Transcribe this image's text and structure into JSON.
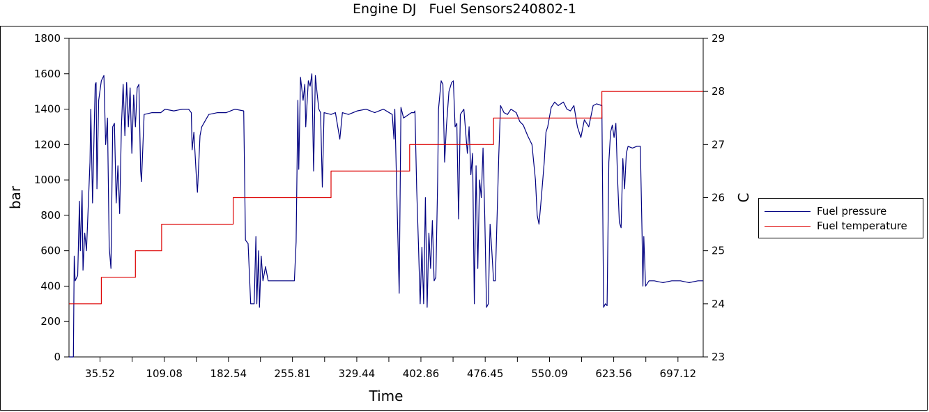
{
  "chart_data": {
    "type": "line",
    "title": "Engine DJ   Fuel Sensors240802-1",
    "xlabel": "Time",
    "ylabel": "bar",
    "y2label": "C",
    "xlim": [
      0,
      726
    ],
    "ylim": [
      0,
      1800
    ],
    "y2lim": [
      23,
      29
    ],
    "x_ticks": [
      35.52,
      109.08,
      182.54,
      255.81,
      329.44,
      402.86,
      476.45,
      550.09,
      623.56,
      697.12
    ],
    "y_ticks": [
      0,
      200,
      400,
      600,
      800,
      1000,
      1200,
      1400,
      1600,
      1800
    ],
    "y2_ticks": [
      23,
      24,
      25,
      26,
      27,
      28,
      29
    ],
    "legend_position": "right",
    "grid": false,
    "series": [
      {
        "name": "Fuel pressure",
        "axis": "left",
        "color": "#000080",
        "points": [
          [
            0,
            0
          ],
          [
            5,
            0
          ],
          [
            6,
            570
          ],
          [
            7,
            430
          ],
          [
            10,
            460
          ],
          [
            12,
            880
          ],
          [
            13,
            600
          ],
          [
            15,
            940
          ],
          [
            16,
            490
          ],
          [
            18,
            700
          ],
          [
            20,
            600
          ],
          [
            24,
            1100
          ],
          [
            25,
            1400
          ],
          [
            27,
            870
          ],
          [
            30,
            1540
          ],
          [
            31,
            1550
          ],
          [
            32,
            950
          ],
          [
            34,
            1450
          ],
          [
            37,
            1560
          ],
          [
            40,
            1590
          ],
          [
            42,
            1200
          ],
          [
            44,
            1350
          ],
          [
            46,
            620
          ],
          [
            48,
            500
          ],
          [
            50,
            1300
          ],
          [
            52,
            1320
          ],
          [
            54,
            870
          ],
          [
            56,
            1080
          ],
          [
            58,
            810
          ],
          [
            60,
            1300
          ],
          [
            62,
            1540
          ],
          [
            64,
            1250
          ],
          [
            66,
            1550
          ],
          [
            68,
            1300
          ],
          [
            70,
            1520
          ],
          [
            72,
            1150
          ],
          [
            74,
            1480
          ],
          [
            76,
            1300
          ],
          [
            78,
            1520
          ],
          [
            80,
            1540
          ],
          [
            82,
            1050
          ],
          [
            83,
            990
          ],
          [
            86,
            1370
          ],
          [
            95,
            1380
          ],
          [
            105,
            1380
          ],
          [
            110,
            1400
          ],
          [
            120,
            1390
          ],
          [
            130,
            1400
          ],
          [
            137,
            1400
          ],
          [
            140,
            1380
          ],
          [
            141,
            1170
          ],
          [
            143,
            1270
          ],
          [
            146,
            1000
          ],
          [
            147,
            930
          ],
          [
            150,
            1250
          ],
          [
            152,
            1300
          ],
          [
            160,
            1370
          ],
          [
            170,
            1380
          ],
          [
            180,
            1380
          ],
          [
            190,
            1400
          ],
          [
            200,
            1390
          ],
          [
            202,
            660
          ],
          [
            205,
            640
          ],
          [
            208,
            300
          ],
          [
            212,
            300
          ],
          [
            214,
            680
          ],
          [
            215,
            300
          ],
          [
            217,
            600
          ],
          [
            218,
            280
          ],
          [
            220,
            570
          ],
          [
            222,
            430
          ],
          [
            225,
            510
          ],
          [
            228,
            430
          ],
          [
            240,
            430
          ],
          [
            250,
            430
          ],
          [
            258,
            430
          ],
          [
            260,
            650
          ],
          [
            262,
            1450
          ],
          [
            263,
            1060
          ],
          [
            265,
            1580
          ],
          [
            268,
            1450
          ],
          [
            270,
            1540
          ],
          [
            271,
            1300
          ],
          [
            274,
            1560
          ],
          [
            276,
            1530
          ],
          [
            278,
            1600
          ],
          [
            280,
            1050
          ],
          [
            282,
            1590
          ],
          [
            284,
            1490
          ],
          [
            286,
            1400
          ],
          [
            288,
            1380
          ],
          [
            290,
            960
          ],
          [
            292,
            1380
          ],
          [
            300,
            1370
          ],
          [
            305,
            1380
          ],
          [
            308,
            1290
          ],
          [
            310,
            1230
          ],
          [
            313,
            1380
          ],
          [
            320,
            1370
          ],
          [
            330,
            1390
          ],
          [
            340,
            1400
          ],
          [
            350,
            1380
          ],
          [
            360,
            1400
          ],
          [
            370,
            1370
          ],
          [
            372,
            1230
          ],
          [
            373,
            1400
          ],
          [
            378,
            360
          ],
          [
            380,
            1410
          ],
          [
            383,
            1350
          ],
          [
            386,
            1360
          ],
          [
            392,
            1380
          ],
          [
            395,
            1380
          ],
          [
            396,
            1390
          ],
          [
            398,
            950
          ],
          [
            400,
            640
          ],
          [
            402,
            300
          ],
          [
            404,
            620
          ],
          [
            406,
            300
          ],
          [
            408,
            900
          ],
          [
            410,
            280
          ],
          [
            412,
            700
          ],
          [
            414,
            500
          ],
          [
            416,
            770
          ],
          [
            418,
            430
          ],
          [
            420,
            450
          ],
          [
            422,
            1000
          ],
          [
            423,
            1400
          ],
          [
            426,
            1560
          ],
          [
            428,
            1540
          ],
          [
            430,
            1100
          ],
          [
            432,
            1300
          ],
          [
            435,
            1500
          ],
          [
            438,
            1550
          ],
          [
            440,
            1560
          ],
          [
            442,
            1300
          ],
          [
            444,
            1320
          ],
          [
            446,
            780
          ],
          [
            448,
            1370
          ],
          [
            452,
            1400
          ],
          [
            456,
            1150
          ],
          [
            458,
            1300
          ],
          [
            460,
            1030
          ],
          [
            462,
            1150
          ],
          [
            464,
            300
          ],
          [
            466,
            1080
          ],
          [
            468,
            500
          ],
          [
            470,
            1000
          ],
          [
            472,
            900
          ],
          [
            474,
            1180
          ],
          [
            476,
            790
          ],
          [
            478,
            280
          ],
          [
            480,
            300
          ],
          [
            482,
            750
          ],
          [
            484,
            600
          ],
          [
            486,
            430
          ],
          [
            488,
            430
          ],
          [
            492,
            1140
          ],
          [
            494,
            1420
          ],
          [
            498,
            1380
          ],
          [
            502,
            1370
          ],
          [
            506,
            1400
          ],
          [
            512,
            1380
          ],
          [
            516,
            1330
          ],
          [
            520,
            1310
          ],
          [
            525,
            1250
          ],
          [
            530,
            1200
          ],
          [
            534,
            1000
          ],
          [
            536,
            800
          ],
          [
            538,
            750
          ],
          [
            540,
            860
          ],
          [
            544,
            1100
          ],
          [
            546,
            1270
          ],
          [
            548,
            1300
          ],
          [
            552,
            1410
          ],
          [
            556,
            1440
          ],
          [
            560,
            1420
          ],
          [
            566,
            1440
          ],
          [
            570,
            1400
          ],
          [
            574,
            1390
          ],
          [
            578,
            1420
          ],
          [
            582,
            1300
          ],
          [
            586,
            1240
          ],
          [
            590,
            1340
          ],
          [
            595,
            1300
          ],
          [
            600,
            1420
          ],
          [
            604,
            1430
          ],
          [
            610,
            1420
          ],
          [
            612,
            280
          ],
          [
            614,
            300
          ],
          [
            616,
            290
          ],
          [
            618,
            1100
          ],
          [
            620,
            1270
          ],
          [
            622,
            1310
          ],
          [
            624,
            1240
          ],
          [
            626,
            1320
          ],
          [
            628,
            1000
          ],
          [
            630,
            760
          ],
          [
            632,
            730
          ],
          [
            634,
            1120
          ],
          [
            636,
            950
          ],
          [
            638,
            1150
          ],
          [
            640,
            1190
          ],
          [
            645,
            1180
          ],
          [
            650,
            1190
          ],
          [
            654,
            1190
          ],
          [
            656,
            690
          ],
          [
            657,
            400
          ],
          [
            658,
            680
          ],
          [
            660,
            400
          ],
          [
            664,
            430
          ],
          [
            670,
            430
          ],
          [
            680,
            420
          ],
          [
            690,
            430
          ],
          [
            700,
            430
          ],
          [
            710,
            420
          ],
          [
            720,
            430
          ],
          [
            726,
            430
          ]
        ]
      },
      {
        "name": "Fuel temperature",
        "axis": "right",
        "color": "#dd0000",
        "points": [
          [
            0,
            24.0
          ],
          [
            37,
            24.0
          ],
          [
            37,
            24.5
          ],
          [
            76,
            24.5
          ],
          [
            76,
            25.0
          ],
          [
            106,
            25.0
          ],
          [
            106,
            25.5
          ],
          [
            188,
            25.5
          ],
          [
            188,
            26.0
          ],
          [
            300,
            26.0
          ],
          [
            300,
            26.5
          ],
          [
            390,
            26.5
          ],
          [
            390,
            27.0
          ],
          [
            486,
            27.0
          ],
          [
            486,
            27.5
          ],
          [
            610,
            27.5
          ],
          [
            610,
            28.0
          ],
          [
            726,
            28.0
          ]
        ]
      }
    ]
  }
}
